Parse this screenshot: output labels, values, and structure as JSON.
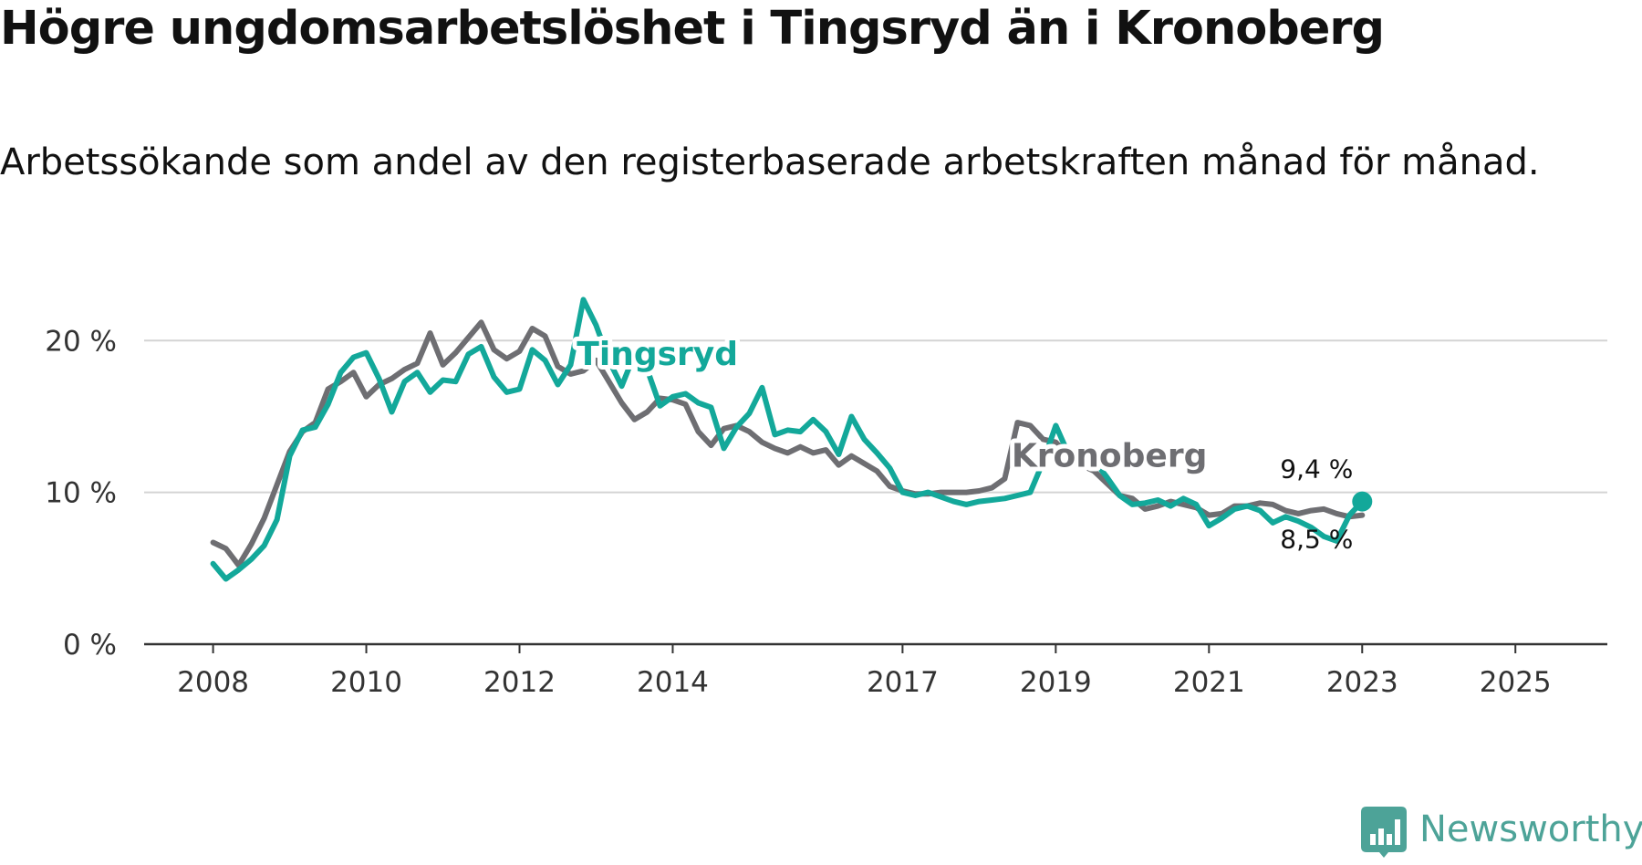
{
  "title": "Högre ungdomsarbetslöshet i Tingsryd än i Kronoberg",
  "subtitle": "Arbetssökande som andel av den registerbaserade arbetskraften månad för månad.",
  "brand": {
    "name": "Newsworthy",
    "color": "#4da398"
  },
  "chart_data": {
    "type": "line",
    "x_start": 2008.0,
    "x_step": 0.16667,
    "xlim": [
      2007.1,
      2026.2
    ],
    "ylim": [
      0,
      22
    ],
    "y_ticks": [
      0,
      10,
      20
    ],
    "y_tick_labels": [
      "0 %",
      "10 %",
      "20 %"
    ],
    "x_ticks": [
      2008,
      2010,
      2012,
      2014,
      2017,
      2019,
      2021,
      2023,
      2025
    ],
    "x_tick_labels": [
      "2008",
      "2010",
      "2012",
      "2014",
      "2017",
      "2019",
      "2021",
      "2023",
      "2025"
    ],
    "grid": "horizontal",
    "series": [
      {
        "name": "Tingsryd",
        "color": "#13a89a",
        "values": [
          5.3,
          4.3,
          4.9,
          5.6,
          6.5,
          8.2,
          12.4,
          14.1,
          14.3,
          15.8,
          17.9,
          18.9,
          19.2,
          17.5,
          15.3,
          17.3,
          17.9,
          16.6,
          17.4,
          17.3,
          19.1,
          19.6,
          17.6,
          16.6,
          16.8,
          19.4,
          18.7,
          17.1,
          18.4,
          22.7,
          21.0,
          18.7,
          17.0,
          19.1,
          18.1,
          15.7,
          16.3,
          16.5,
          15.9,
          15.6,
          12.9,
          14.3,
          15.2,
          16.9,
          13.8,
          14.1,
          14.0,
          14.8,
          14.0,
          12.5,
          15.0,
          13.5,
          12.6,
          11.6,
          10.0,
          9.8,
          10.0,
          9.7,
          9.4,
          9.2,
          9.4,
          9.5,
          9.6,
          9.8,
          10.0,
          12.0,
          14.4,
          12.5,
          11.6,
          12.1,
          11.0,
          9.8,
          9.2,
          9.3,
          9.5,
          9.1,
          9.6,
          9.2,
          7.8,
          8.3,
          8.9,
          9.1,
          8.8,
          8.0,
          8.4,
          8.1,
          7.7,
          7.1,
          6.8,
          8.5,
          9.4
        ],
        "end_value": 9.4,
        "end_label": "9,4 %"
      },
      {
        "name": "Kronoberg",
        "color": "#6e6e72",
        "values": [
          6.7,
          6.3,
          5.2,
          6.6,
          8.3,
          10.5,
          12.7,
          14.0,
          14.6,
          16.8,
          17.3,
          17.9,
          16.3,
          17.1,
          17.5,
          18.1,
          18.5,
          20.5,
          18.4,
          19.2,
          20.2,
          21.2,
          19.4,
          18.8,
          19.3,
          20.8,
          20.3,
          18.3,
          17.8,
          18.0,
          18.7,
          17.3,
          15.9,
          14.8,
          15.3,
          16.2,
          16.1,
          15.8,
          14.0,
          13.1,
          14.2,
          14.4,
          14.0,
          13.3,
          12.9,
          12.6,
          13.0,
          12.6,
          12.8,
          11.8,
          12.4,
          11.9,
          11.4,
          10.4,
          10.1,
          9.9,
          9.9,
          10.0,
          10.0,
          10.0,
          10.1,
          10.3,
          10.9,
          14.6,
          14.4,
          13.5,
          13.3,
          12.4,
          11.8,
          11.4,
          10.6,
          9.8,
          9.6,
          8.9,
          9.1,
          9.4,
          9.2,
          9.0,
          8.5,
          8.6,
          9.1,
          9.1,
          9.3,
          9.2,
          8.8,
          8.6,
          8.8,
          8.9,
          8.6,
          8.4,
          8.5
        ],
        "end_value": 8.5,
        "end_label": "8,5 %"
      }
    ]
  }
}
